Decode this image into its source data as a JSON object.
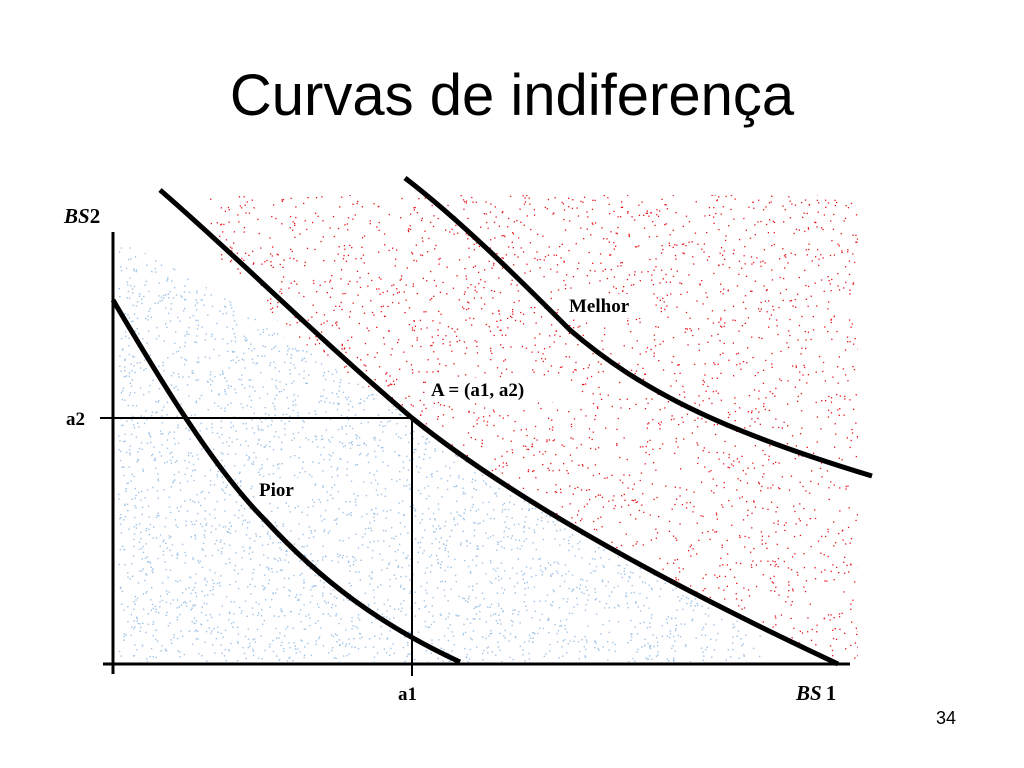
{
  "slide": {
    "title": "Curvas de indiferença",
    "page_number": "34"
  },
  "diagram": {
    "axes": {
      "x_label_italic": "BS",
      "x_label_number": "1",
      "y_label_italic": "BS",
      "y_label_number": "2",
      "x_point": "a1",
      "y_point": "a2"
    },
    "labels": {
      "better": "Melhor",
      "worse": "Pior",
      "point_a": "A = (a1, a2)"
    },
    "colors": {
      "worse_region": "#9fc3e6",
      "better_region": "#e8141c",
      "lines": "#000000"
    }
  }
}
